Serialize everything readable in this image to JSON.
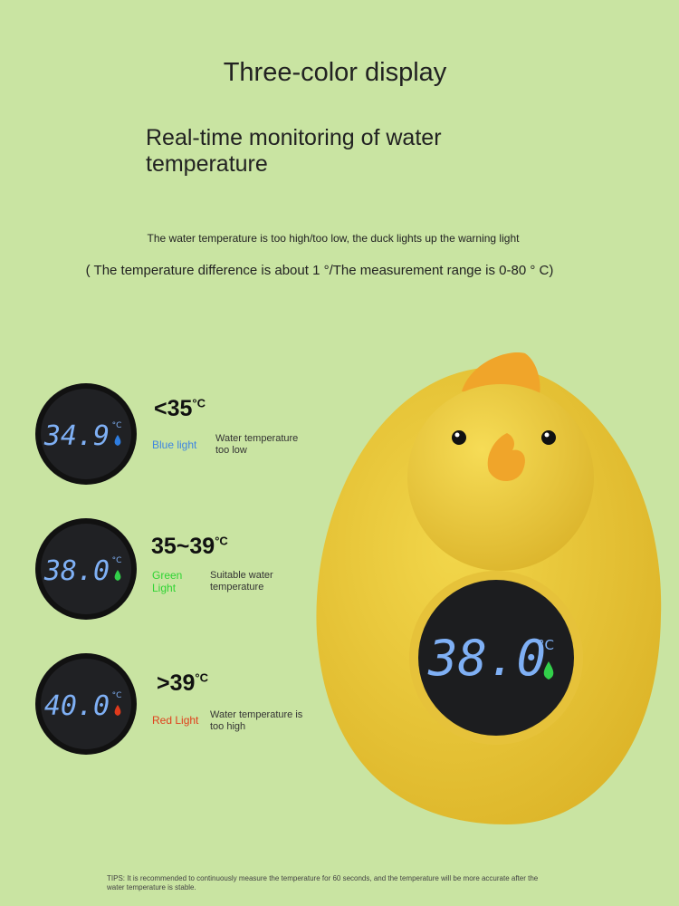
{
  "header": {
    "title": "Three-color display",
    "subtitle": "Real-time monitoring of water temperature",
    "note": "The water temperature is too high/too low, the duck lights up the warning light",
    "range_note": "( The temperature difference is about 1 °/The measurement range is 0-80 ° C)"
  },
  "rows": [
    {
      "display": "34.9",
      "display_unit": "°C",
      "range": "<35",
      "unit": "°C",
      "light": "Blue light",
      "description": "Water temperature too low"
    },
    {
      "display": "38.0",
      "display_unit": "°C",
      "range": "35~39",
      "unit": "°C",
      "light": "Green Light",
      "description": "Suitable water temperature"
    },
    {
      "display": "40.0",
      "display_unit": "°C",
      "range": ">39",
      "unit": "°C",
      "light": "Red Light",
      "description": "Water temperature is too high"
    }
  ],
  "duck": {
    "display": "38.0",
    "display_unit": "°C"
  },
  "tips": "TIPS: It is recommended to continuously measure the temperature for 60 seconds, and the temperature will be more accurate after the water temperature is stable."
}
